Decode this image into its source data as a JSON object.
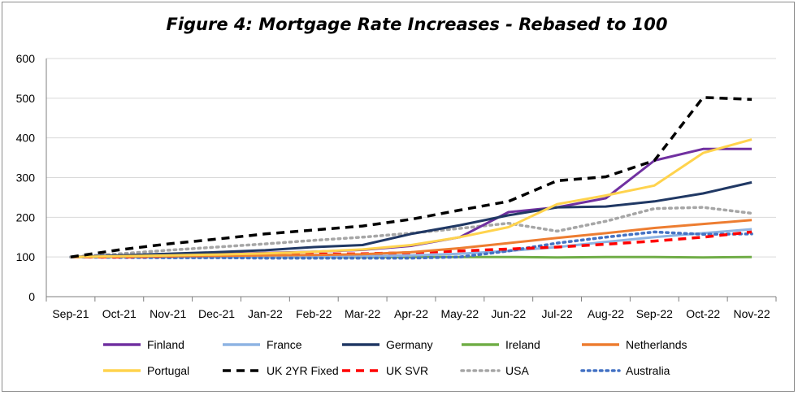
{
  "chart_data": {
    "type": "line",
    "title": "Figure 4: Mortgage Rate Increases - Rebased to 100",
    "xlabel": "",
    "ylabel": "",
    "ylim": [
      0,
      600
    ],
    "yticks": [
      "0",
      "100",
      "200",
      "300",
      "400",
      "500",
      "600"
    ],
    "grid": "horizontal",
    "legend": "bottom",
    "categories": [
      "Sep-21",
      "Oct-21",
      "Nov-21",
      "Dec-21",
      "Jan-22",
      "Feb-22",
      "Mar-22",
      "Apr-22",
      "May-22",
      "Jun-22",
      "Jul-22",
      "Aug-22",
      "Sep-22",
      "Oct-22",
      "Nov-22"
    ],
    "series": [
      {
        "name": "Finland",
        "color": "#7030a0",
        "dash": "solid",
        "values": [
          100,
          103,
          105,
          107,
          110,
          113,
          118,
          128,
          150,
          213,
          225,
          248,
          343,
          372,
          372
        ]
      },
      {
        "name": "France",
        "color": "#8eb4e3",
        "dash": "solid",
        "values": [
          100,
          100,
          100,
          100,
          101,
          101,
          102,
          104,
          108,
          115,
          125,
          138,
          150,
          160,
          170
        ]
      },
      {
        "name": "Germany",
        "color": "#203864",
        "dash": "solid",
        "values": [
          100,
          104,
          108,
          112,
          117,
          125,
          130,
          158,
          180,
          205,
          225,
          227,
          240,
          260,
          288
        ]
      },
      {
        "name": "Ireland",
        "color": "#70ad47",
        "dash": "solid",
        "values": [
          100,
          100,
          100,
          100,
          100,
          100,
          100,
          100,
          100,
          100,
          99,
          100,
          100,
          99,
          100
        ]
      },
      {
        "name": "Netherlands",
        "color": "#ed7d31",
        "dash": "solid",
        "values": [
          100,
          101,
          102,
          103,
          104,
          105,
          107,
          112,
          122,
          135,
          148,
          160,
          173,
          183,
          193
        ]
      },
      {
        "name": "Portugal",
        "color": "#ffd34d",
        "dash": "solid",
        "values": [
          100,
          102,
          104,
          106,
          109,
          113,
          119,
          130,
          150,
          175,
          233,
          255,
          280,
          362,
          396
        ]
      },
      {
        "name": "UK 2YR Fixed",
        "color": "#000000",
        "dash": "dash",
        "values": [
          100,
          118,
          133,
          145,
          158,
          168,
          178,
          195,
          218,
          240,
          292,
          302,
          343,
          502,
          497
        ]
      },
      {
        "name": "UK SVR",
        "color": "#ff0000",
        "dash": "dash",
        "values": [
          100,
          100,
          102,
          104,
          106,
          107,
          108,
          111,
          115,
          120,
          125,
          132,
          140,
          150,
          163
        ]
      },
      {
        "name": "USA",
        "color": "#a6a6a6",
        "dash": "dot",
        "values": [
          100,
          108,
          117,
          125,
          133,
          142,
          150,
          160,
          172,
          185,
          165,
          190,
          222,
          225,
          210
        ]
      },
      {
        "name": "Australia",
        "color": "#4472c4",
        "dash": "dot",
        "values": [
          100,
          99,
          98,
          98,
          97,
          97,
          97,
          97,
          100,
          115,
          135,
          150,
          163,
          157,
          158
        ]
      }
    ]
  }
}
